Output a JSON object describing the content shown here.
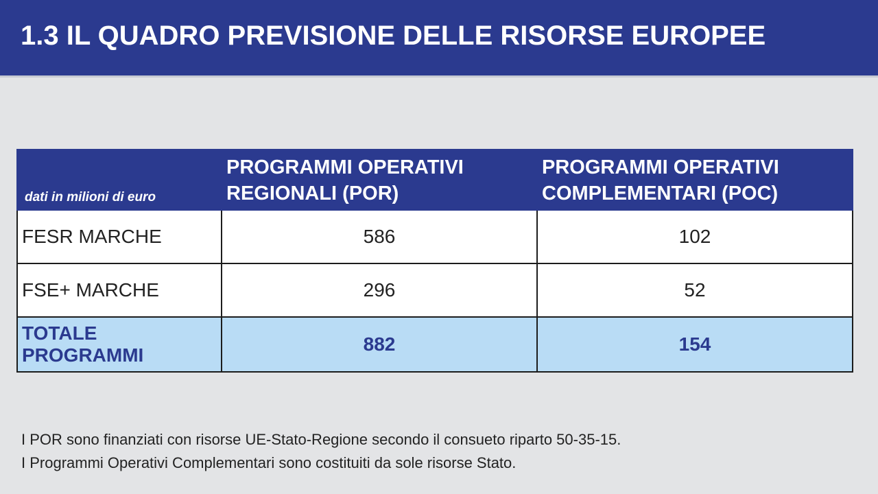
{
  "header": {
    "title": "1.3 IL QUADRO PREVISIONE DELLE RISORSE EUROPEE"
  },
  "table": {
    "unit_label": "dati in milioni di euro",
    "columns": [
      {
        "line1": "PROGRAMMI OPERATIVI",
        "line2": "REGIONALI (POR)"
      },
      {
        "line1": "PROGRAMMI OPERATIVI",
        "line2": "COMPLEMENTARI (POC)"
      }
    ],
    "rows": [
      {
        "label": "FESR MARCHE",
        "por": "586",
        "poc": "102"
      },
      {
        "label": "FSE+ MARCHE",
        "por": "296",
        "poc": "52"
      }
    ],
    "total": {
      "label": "TOTALE PROGRAMMI",
      "por": "882",
      "poc": "154"
    }
  },
  "notes": [
    "I POR sono finanziati con risorse UE-Stato-Regione secondo il consueto riparto 50-35-15.",
    "I Programmi Operativi Complementari sono costituiti da sole risorse Stato."
  ],
  "colors": {
    "header_blue": "#2b3a8f",
    "total_row_bg": "#b9dcf5",
    "page_bg": "#e3e4e6"
  }
}
